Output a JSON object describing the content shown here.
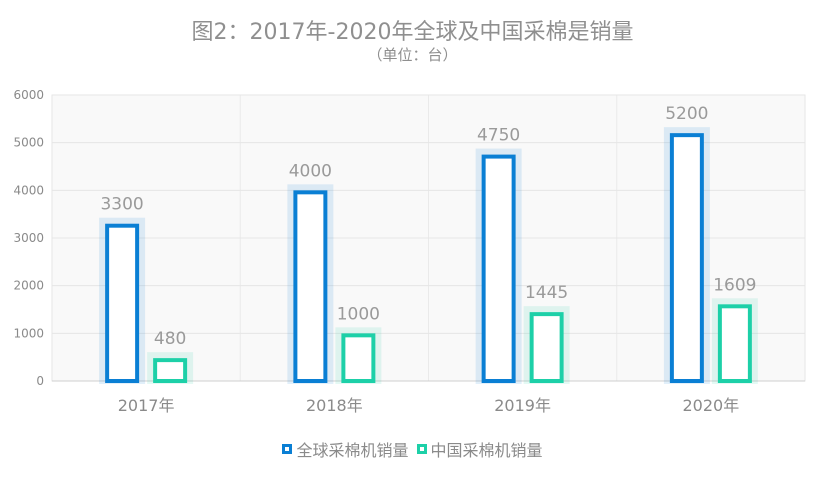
{
  "chart_data": {
    "type": "bar",
    "title": "图2：2017年-2020年全球及中国采棉是销量",
    "subtitle": "（单位：台）",
    "categories": [
      "2017年",
      "2018年",
      "2019年",
      "2020年"
    ],
    "yticks": [
      "0",
      "1000",
      "2000",
      "3000",
      "4000",
      "5000",
      "6000"
    ],
    "ylim": [
      0,
      6000
    ],
    "grid": true,
    "legend_position": "bottom",
    "series": [
      {
        "name": "全球采棉机销量",
        "values": [
          3300,
          4000,
          4750,
          5200
        ],
        "color": "#0a7fd4"
      },
      {
        "name": "中国采棉机销量",
        "values": [
          480,
          1000,
          1445,
          1609
        ],
        "color": "#1dd0a8"
      }
    ],
    "data_labels": [
      [
        "3300",
        "4000",
        "4750",
        "5200"
      ],
      [
        "480",
        "1000",
        "1445",
        "1609"
      ]
    ]
  }
}
